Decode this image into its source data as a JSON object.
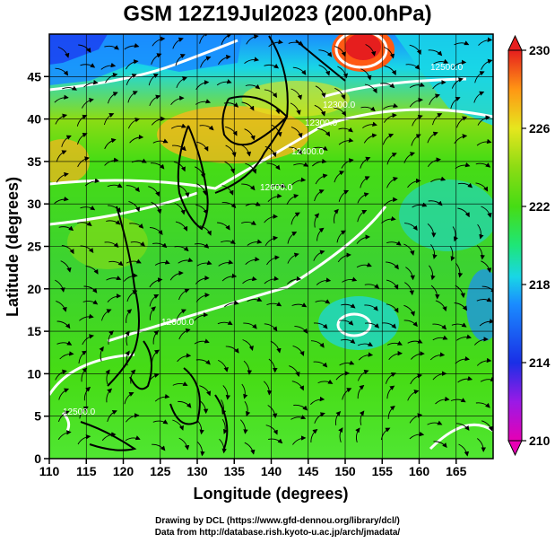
{
  "title": "GSM 12Z19Jul2023 (200.0hPa)",
  "xaxis": {
    "label": "Longitude (degrees)",
    "ticks": [
      "110",
      "115",
      "120",
      "125",
      "130",
      "135",
      "140",
      "145",
      "150",
      "155",
      "160",
      "165"
    ],
    "range": [
      110,
      170
    ]
  },
  "yaxis": {
    "label": "Latitude  (degrees)",
    "ticks": [
      "0",
      "5",
      "10",
      "15",
      "20",
      "25",
      "30",
      "35",
      "40",
      "45"
    ],
    "range": [
      0,
      50
    ]
  },
  "colorbar": {
    "ticks": [
      "210",
      "214",
      "218",
      "222",
      "226",
      "230"
    ],
    "range": [
      210,
      230
    ],
    "colors": [
      "#e600b4",
      "#7a1aff",
      "#1a2fe6",
      "#1a8cff",
      "#19d6e6",
      "#1ee678",
      "#46dc14",
      "#8cdc14",
      "#e6e61e",
      "#ffb41e",
      "#ff5a14",
      "#e61e1e"
    ]
  },
  "contour_labels": [
    "12300.0",
    "12300.0",
    "12400.0",
    "12600.0",
    "12600.0",
    "12500.0",
    "12500.0"
  ],
  "credits": {
    "line1": "Drawing by DCL (https://www.gfd-dennou.org/library/dcl/)",
    "line2": "Data from http://database.rish.kyoto-u.ac.jp/arch/jmadata/"
  }
}
